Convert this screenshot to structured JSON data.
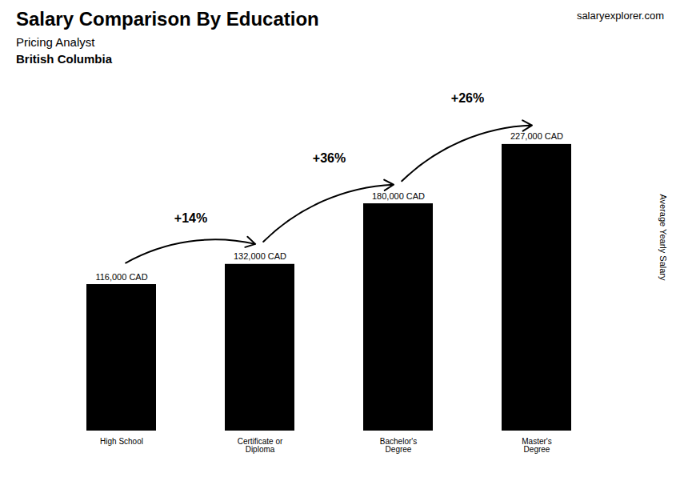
{
  "chart_data": {
    "type": "bar",
    "title": "Salary Comparison By Education",
    "subtitle": "Pricing Analyst",
    "ylabel": "Average Yearly Salary",
    "categories": [
      "High School",
      "Certificate or\nDiploma",
      "Bachelor's\nDegree",
      "Master's\nDegree"
    ],
    "values": [
      116000,
      132000,
      180000,
      227000
    ],
    "value_labels": [
      "116,000 CAD",
      "132,000 CAD",
      "180,000 CAD",
      "227,000 CAD"
    ],
    "data_labels": true,
    "ylim": [
      0,
      238350
    ],
    "tick_labels": "x",
    "grid": false,
    "annotations": [
      {
        "text": "British Columbia"
      },
      {
        "text": "salaryexplorer.com"
      },
      {
        "text": "+14%",
        "from": "High School",
        "to": "Certificate or\nDiploma"
      },
      {
        "text": "+36%",
        "from": "Certificate or\nDiploma",
        "to": "Bachelor's\nDegree"
      },
      {
        "text": "+26%",
        "from": "Bachelor's\nDegree",
        "to": "Master's\nDegree"
      }
    ]
  }
}
